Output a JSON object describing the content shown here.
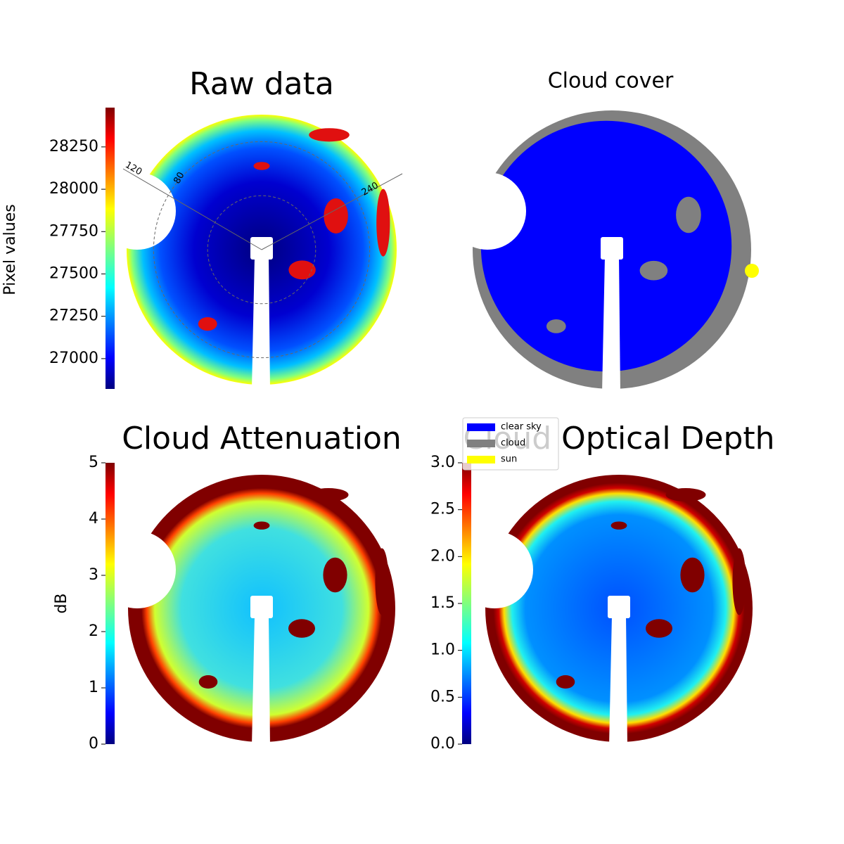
{
  "chart_data": [
    {
      "type": "heatmap",
      "title": "Raw data",
      "colorbar_label": "Pixel values",
      "ylim": [
        26821,
        28482
      ],
      "yticks": [
        27000,
        27250,
        27500,
        27750,
        28000,
        28250
      ],
      "annotations": [
        "120",
        "80",
        "240"
      ]
    },
    {
      "type": "image",
      "title": "Cloud cover",
      "legend": [
        {
          "name": "clear sky",
          "color": "#0000ff"
        },
        {
          "name": "cloud",
          "color": "#808080"
        },
        {
          "name": "sun",
          "color": "#ffff00"
        }
      ]
    },
    {
      "type": "heatmap",
      "title": "Cloud Attenuation",
      "colorbar_label": "dB",
      "ylim": [
        0,
        5
      ],
      "yticks": [
        0,
        1,
        2,
        3,
        4,
        5
      ]
    },
    {
      "type": "heatmap",
      "title": "Cloud Optical Depth",
      "ylim": [
        0,
        3
      ],
      "yticks": [
        {
          "value": 0,
          "label": "0.0"
        },
        0.5,
        {
          "value": 1,
          "label": "1.0"
        },
        1.5,
        {
          "value": 2,
          "label": "2.0"
        },
        2.5,
        {
          "value": 3,
          "label": "3.0"
        }
      ]
    }
  ]
}
